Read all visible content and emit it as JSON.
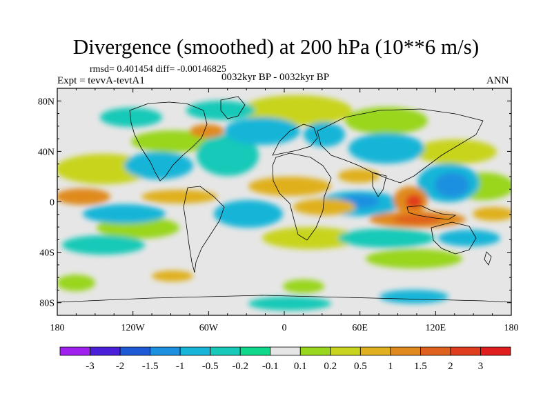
{
  "header": {
    "title": "Divergence (smoothed) at 200 hPa (10**6 m/s)",
    "stats": "rmsd= 0.401454 diff= -0.00146825",
    "experiment": "Expt = tevvA-tevtA1",
    "period": "0032kyr BP - 0032kyr BP",
    "season": "ANN"
  },
  "map": {
    "lat_labels": [
      "80N",
      "40N",
      "0",
      "40S",
      "80S"
    ],
    "lon_labels": [
      "180",
      "120W",
      "60W",
      "0",
      "60E",
      "120E",
      "180"
    ],
    "zero_fill_color": "#e6e6e6",
    "coast_color": "#000000"
  },
  "colorbar": {
    "colors": [
      "#a020f0",
      "#4b1fd9",
      "#1e5ad6",
      "#1e90e0",
      "#17b5d8",
      "#16c9b8",
      "#10d88a",
      "#e6e6e6",
      "#99d61e",
      "#c8d41e",
      "#e0b01e",
      "#e08a1e",
      "#e0601e",
      "#e03c1e",
      "#e01e1e"
    ],
    "labels": [
      "-3",
      "-2",
      "-1.5",
      "-1",
      "-0.5",
      "-0.2",
      "-0.1",
      "0.1",
      "0.2",
      "0.5",
      "1",
      "1.5",
      "2",
      "3"
    ]
  }
}
